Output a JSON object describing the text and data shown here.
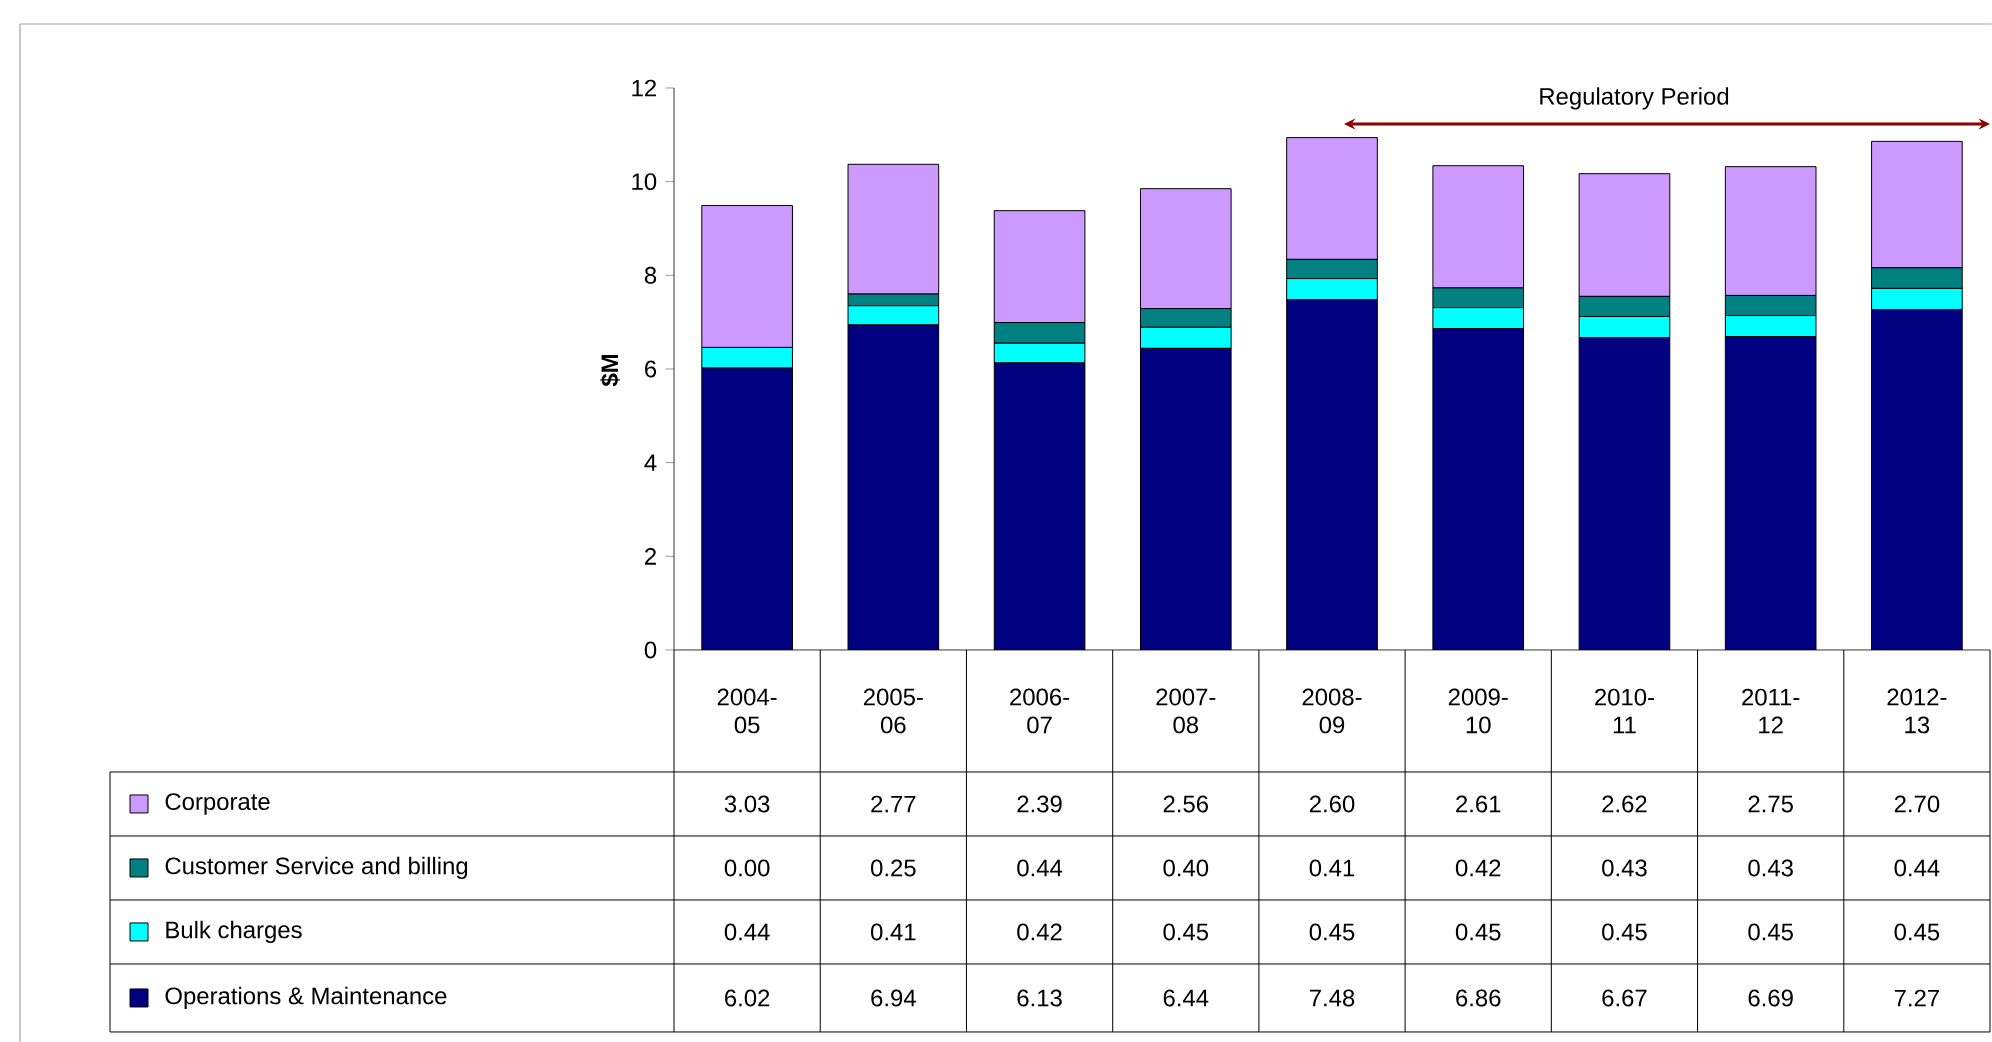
{
  "chart_data": {
    "type": "bar",
    "stacked": true,
    "ylabel": "$M",
    "legend": "bottom",
    "categories": [
      "2004-05",
      "2005-06",
      "2006-07",
      "2007-08",
      "2008-09",
      "2009-10",
      "2010-11",
      "2011-12",
      "2012-13"
    ],
    "ylim": [
      0,
      12
    ],
    "yticks": [
      0,
      2,
      4,
      6,
      8,
      10,
      12
    ],
    "series": [
      {
        "name": "Operations & Maintenance",
        "color": "#000080",
        "values": [
          6.02,
          6.94,
          6.13,
          6.44,
          7.48,
          6.86,
          6.67,
          6.69,
          7.27
        ],
        "value_labels": [
          "6.02",
          "6.94",
          "6.13",
          "6.44",
          "7.48",
          "6.86",
          "6.67",
          "6.69",
          "7.27"
        ]
      },
      {
        "name": "Bulk charges",
        "color": "#00ffff",
        "values": [
          0.44,
          0.41,
          0.42,
          0.45,
          0.45,
          0.45,
          0.45,
          0.45,
          0.45
        ],
        "value_labels": [
          "0.44",
          "0.41",
          "0.42",
          "0.45",
          "0.45",
          "0.45",
          "0.45",
          "0.45",
          "0.45"
        ]
      },
      {
        "name": "Customer Service and billing",
        "color": "#008080",
        "values": [
          0.0,
          0.25,
          0.44,
          0.4,
          0.41,
          0.42,
          0.43,
          0.43,
          0.44
        ],
        "value_labels": [
          "0.00",
          "0.25",
          "0.44",
          "0.40",
          "0.41",
          "0.42",
          "0.43",
          "0.43",
          "0.44"
        ]
      },
      {
        "name": "Corporate",
        "color": "#cc99ff",
        "values": [
          3.03,
          2.77,
          2.39,
          2.56,
          2.6,
          2.61,
          2.62,
          2.75,
          2.7
        ],
        "value_labels": [
          "3.03",
          "2.77",
          "2.39",
          "2.56",
          "2.60",
          "2.61",
          "2.62",
          "2.75",
          "2.70"
        ]
      }
    ],
    "annotations": [
      "Regulatory Period"
    ]
  }
}
